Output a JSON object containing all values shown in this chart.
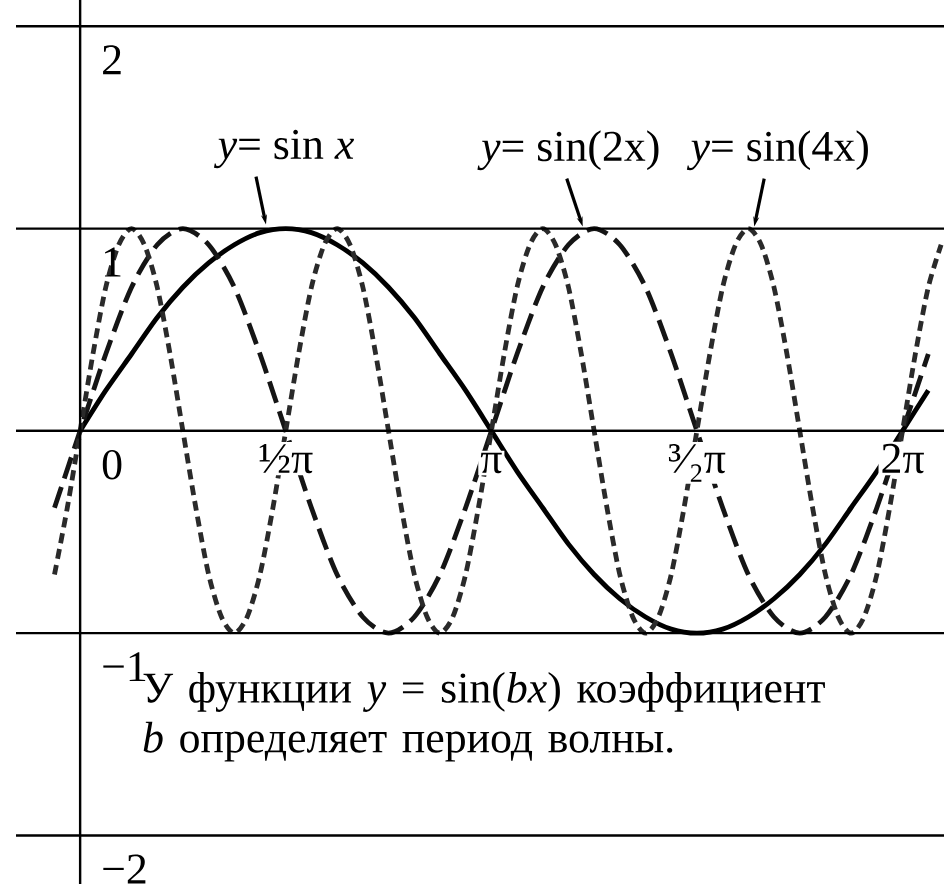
{
  "chart_data": {
    "type": "line",
    "xlim": [
      -0.49,
      6.6
    ],
    "ylim": [
      -2.24,
      2.13
    ],
    "grid": "y",
    "xticks": [
      {
        "value": 1.5708,
        "label": "½π"
      },
      {
        "value": 3.1416,
        "label": "π"
      },
      {
        "value": 4.7124,
        "label": "³⁄₂π"
      },
      {
        "value": 6.2832,
        "label": "2π"
      }
    ],
    "yticks": [
      {
        "value": -2,
        "label": "−2"
      },
      {
        "value": -1,
        "label": "−1"
      },
      0,
      1,
      2
    ],
    "series": [
      {
        "color": "#000000",
        "line_style": "solid",
        "x": [
          0,
          0.196,
          0.393,
          0.589,
          0.785,
          0.982,
          1.178,
          1.374,
          1.571,
          1.767,
          1.963,
          2.16,
          2.356,
          2.553,
          2.749,
          2.945,
          3.142,
          3.338,
          3.534,
          3.731,
          3.927,
          4.123,
          4.32,
          4.516,
          4.712,
          4.909,
          5.105,
          5.301,
          5.498,
          5.694,
          5.89,
          6.087,
          6.283,
          6.48
        ],
        "values": [
          0,
          0.2,
          0.38,
          0.56,
          0.71,
          0.83,
          0.92,
          0.98,
          1,
          0.98,
          0.92,
          0.83,
          0.71,
          0.56,
          0.38,
          0.2,
          0,
          -0.2,
          -0.38,
          -0.56,
          -0.71,
          -0.83,
          -0.92,
          -0.98,
          -1,
          -0.98,
          -0.92,
          -0.83,
          -0.71,
          -0.56,
          -0.38,
          -0.2,
          0,
          0.2
        ]
      },
      {
        "color": "#151515",
        "line_style": "dashed",
        "x": [
          -0.196,
          0,
          0.196,
          0.393,
          0.589,
          0.785,
          0.982,
          1.178,
          1.374,
          1.571,
          1.767,
          1.963,
          2.16,
          2.356,
          2.553,
          2.749,
          2.945,
          3.142,
          3.338,
          3.534,
          3.731,
          3.927,
          4.123,
          4.32,
          4.516,
          4.712,
          4.909,
          5.105,
          5.301,
          5.498,
          5.694,
          5.89,
          6.087,
          6.283,
          6.48
        ],
        "values": [
          -0.38,
          0,
          0.38,
          0.71,
          0.92,
          1,
          0.92,
          0.71,
          0.38,
          0,
          -0.38,
          -0.71,
          -0.92,
          -1,
          -0.92,
          -0.71,
          -0.38,
          0,
          0.38,
          0.71,
          0.92,
          1,
          0.92,
          0.71,
          0.38,
          0,
          -0.38,
          -0.71,
          -0.92,
          -1,
          -0.92,
          -0.71,
          -0.38,
          0,
          0.38
        ]
      },
      {
        "color": "#2a2a2a",
        "line_style": "dotted",
        "x": [
          -0.196,
          -0.098,
          0,
          0.098,
          0.196,
          0.295,
          0.393,
          0.491,
          0.589,
          0.687,
          0.785,
          0.884,
          0.982,
          1.08,
          1.178,
          1.276,
          1.374,
          1.473,
          1.571,
          1.669,
          1.767,
          1.865,
          1.963,
          2.062,
          2.16,
          2.258,
          2.356,
          2.454,
          2.553,
          2.651,
          2.749,
          2.847,
          2.945,
          3.043,
          3.142,
          3.24,
          3.338,
          3.436,
          3.534,
          3.632,
          3.731,
          3.829,
          3.927,
          4.025,
          4.123,
          4.222,
          4.32,
          4.418,
          4.516,
          4.614,
          4.712,
          4.811,
          4.909,
          5.007,
          5.105,
          5.203,
          5.301,
          5.4,
          5.498,
          5.596,
          5.694,
          5.792,
          5.89,
          5.989,
          6.087,
          6.185,
          6.283,
          6.381,
          6.48,
          6.578
        ],
        "values": [
          -0.71,
          -0.38,
          0,
          0.38,
          0.71,
          0.92,
          1,
          0.92,
          0.71,
          0.38,
          0,
          -0.38,
          -0.71,
          -0.92,
          -1,
          -0.92,
          -0.71,
          -0.38,
          0,
          0.38,
          0.71,
          0.92,
          1,
          0.92,
          0.71,
          0.38,
          0,
          -0.38,
          -0.71,
          -0.92,
          -1,
          -0.92,
          -0.71,
          -0.38,
          0,
          0.38,
          0.71,
          0.92,
          1,
          0.92,
          0.71,
          0.38,
          0,
          -0.38,
          -0.71,
          -0.92,
          -1,
          -0.92,
          -0.71,
          -0.38,
          0,
          0.38,
          0.71,
          0.92,
          1,
          0.92,
          0.71,
          0.38,
          0,
          -0.38,
          -0.71,
          -0.92,
          -1,
          -0.92,
          -0.71,
          -0.38,
          0,
          0.38,
          0.71,
          0.92
        ]
      }
    ],
    "annotations": [
      {
        "text": "*y*= sin *x*",
        "x": 1.42,
        "y": 0.99
      },
      {
        "text": "*y*= sin(2x)",
        "x": 3.84,
        "y": 0.98
      },
      {
        "text": "*y*= sin(4x)",
        "x": 5.15,
        "y": 0.98
      },
      "У функции *y* = sin(*bx*) коэффициент *b* определяет период волны."
    ]
  }
}
